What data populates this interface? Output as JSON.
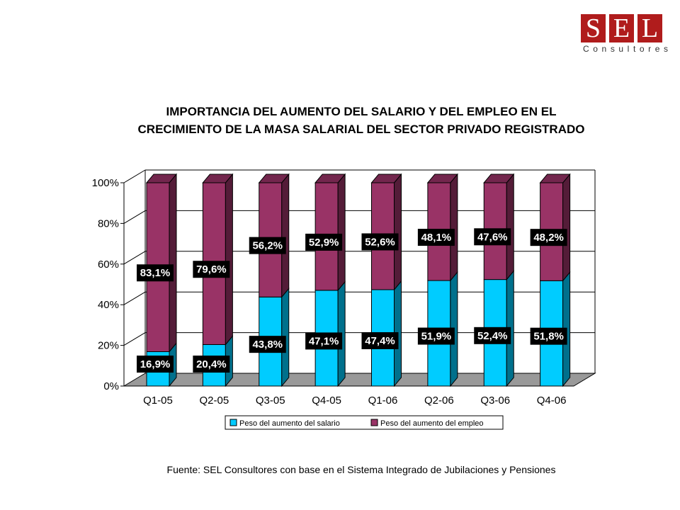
{
  "logo": {
    "letters": [
      "S",
      "E",
      "L"
    ],
    "subtitle": "Consultores"
  },
  "source": "Fuente: SEL Consultores con base en el Sistema Integrado de Jubilaciones y Pensiones",
  "colors": {
    "salary": "#00ccff",
    "employment": "#993366",
    "floor": "#999999",
    "label_bg": "#000000",
    "label_text": "#ffffff"
  },
  "chart_data": {
    "type": "bar",
    "stacked": true,
    "title": "IMPORTANCIA DEL AUMENTO DEL SALARIO Y DEL EMPLEO EN EL CRECIMIENTO DE LA MASA SALARIAL DEL SECTOR PRIVADO REGISTRADO",
    "categories": [
      "Q1-05",
      "Q2-05",
      "Q3-05",
      "Q4-05",
      "Q1-06",
      "Q2-06",
      "Q3-06",
      "Q4-06"
    ],
    "series": [
      {
        "name": "Peso del aumento del salario",
        "values": [
          16.9,
          20.4,
          43.8,
          47.1,
          47.4,
          51.9,
          52.4,
          51.8
        ],
        "labels": [
          "16,9%",
          "20,4%",
          "43,8%",
          "47,1%",
          "47,4%",
          "51,9%",
          "52,4%",
          "51,8%"
        ]
      },
      {
        "name": "Peso del aumento del empleo",
        "values": [
          83.1,
          79.6,
          56.2,
          52.9,
          52.6,
          48.1,
          47.6,
          48.2
        ],
        "labels": [
          "83,1%",
          "79,6%",
          "56,2%",
          "52,9%",
          "52,6%",
          "48,1%",
          "47,6%",
          "48,2%"
        ]
      }
    ],
    "ylim": [
      0,
      100
    ],
    "yticks": [
      "0%",
      "20%",
      "40%",
      "60%",
      "80%",
      "100%"
    ],
    "grid": true,
    "legend": "bottom"
  }
}
